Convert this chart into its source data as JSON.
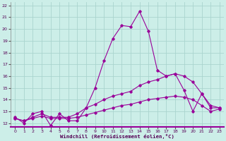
{
  "xlabel": "Windchill (Refroidissement éolien,°C)",
  "background_color": "#cceee8",
  "grid_color": "#aad4ce",
  "line_color": "#990099",
  "xlim": [
    -0.5,
    23.5
  ],
  "ylim": [
    11.7,
    22.3
  ],
  "xticks": [
    0,
    1,
    2,
    3,
    4,
    5,
    6,
    7,
    8,
    9,
    10,
    11,
    12,
    13,
    14,
    15,
    16,
    17,
    18,
    19,
    20,
    21,
    22,
    23
  ],
  "yticks": [
    12,
    13,
    14,
    15,
    16,
    17,
    18,
    19,
    20,
    21,
    22
  ],
  "line1_x": [
    0,
    1,
    2,
    3,
    4,
    5,
    6,
    7,
    8,
    9,
    10,
    11,
    12,
    13,
    14,
    15,
    16,
    17,
    18,
    19,
    20,
    21,
    22,
    23
  ],
  "line1_y": [
    12.5,
    12.0,
    12.8,
    13.0,
    11.8,
    12.8,
    12.2,
    12.2,
    13.3,
    15.0,
    17.3,
    19.2,
    20.3,
    20.2,
    21.5,
    19.8,
    16.5,
    16.0,
    16.2,
    14.8,
    13.0,
    14.5,
    13.5,
    13.3
  ],
  "line2_x": [
    0,
    1,
    2,
    3,
    4,
    5,
    6,
    7,
    8,
    9,
    10,
    11,
    12,
    13,
    14,
    15,
    16,
    17,
    18,
    19,
    20,
    21,
    22,
    23
  ],
  "line2_y": [
    12.4,
    12.2,
    12.5,
    12.8,
    12.5,
    12.5,
    12.5,
    12.8,
    13.3,
    13.6,
    14.0,
    14.3,
    14.5,
    14.7,
    15.2,
    15.5,
    15.7,
    16.0,
    16.2,
    16.0,
    15.5,
    14.5,
    13.3,
    13.3
  ],
  "line3_x": [
    0,
    1,
    2,
    3,
    4,
    5,
    6,
    7,
    8,
    9,
    10,
    11,
    12,
    13,
    14,
    15,
    16,
    17,
    18,
    19,
    20,
    21,
    22,
    23
  ],
  "line3_y": [
    12.4,
    12.2,
    12.4,
    12.6,
    12.4,
    12.4,
    12.4,
    12.5,
    12.7,
    12.9,
    13.1,
    13.3,
    13.5,
    13.6,
    13.8,
    14.0,
    14.1,
    14.2,
    14.3,
    14.2,
    14.0,
    13.5,
    13.0,
    13.2
  ]
}
